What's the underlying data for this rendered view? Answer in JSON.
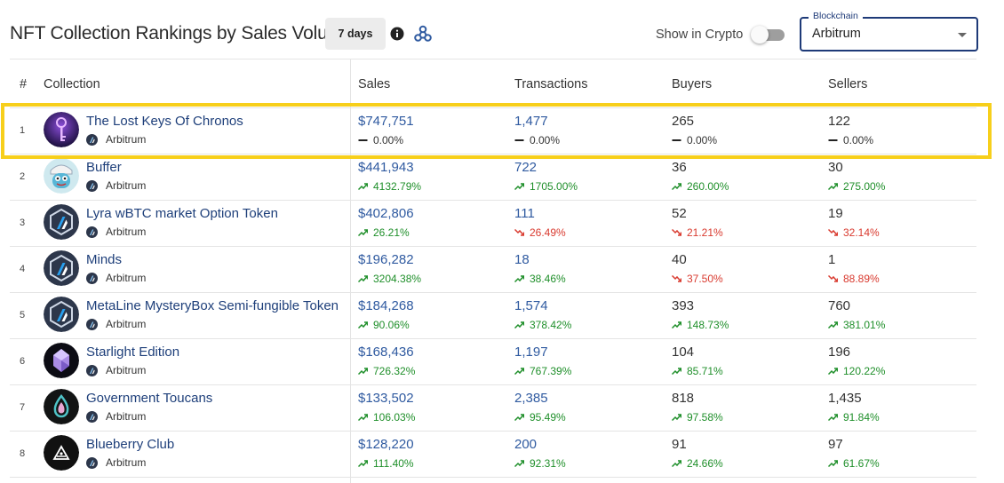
{
  "header": {
    "title": "NFT Collection Rankings by Sales Volume",
    "period_label": "7 days",
    "show_crypto_label": "Show in Crypto",
    "show_crypto_on": false,
    "blockchain_legend": "Blockchain",
    "blockchain_value": "Arbitrum"
  },
  "colors": {
    "accent": "#1e3a78",
    "link": "#2f5aa0",
    "up": "#1f8f2a",
    "down": "#d93a2f",
    "highlight": "#f7cf1b"
  },
  "table": {
    "columns": [
      "#",
      "Collection",
      "Sales",
      "Transactions",
      "Buyers",
      "Sellers"
    ],
    "rows": [
      {
        "rank": "1",
        "name": "The Lost Keys Of Chronos",
        "chain": "Arbitrum",
        "avatar_icon": "chronos-key-avatar",
        "sales": "$747,751",
        "sales_change": "0.00%",
        "sales_trend": "flat",
        "transactions": "1,477",
        "transactions_change": "0.00%",
        "transactions_trend": "flat",
        "buyers": "265",
        "buyers_change": "0.00%",
        "buyers_trend": "flat",
        "sellers": "122",
        "sellers_change": "0.00%",
        "sellers_trend": "flat",
        "highlighted": true
      },
      {
        "rank": "2",
        "name": "Buffer",
        "chain": "Arbitrum",
        "avatar_icon": "buffer-mascot-avatar",
        "sales": "$441,943",
        "sales_change": "4132.79%",
        "sales_trend": "up",
        "transactions": "722",
        "transactions_change": "1705.00%",
        "transactions_trend": "up",
        "buyers": "36",
        "buyers_change": "260.00%",
        "buyers_trend": "up",
        "sellers": "30",
        "sellers_change": "275.00%",
        "sellers_trend": "up"
      },
      {
        "rank": "3",
        "name": "Lyra wBTC market Option Token",
        "chain": "Arbitrum",
        "avatar_icon": "arbitrum-logo-avatar",
        "sales": "$402,806",
        "sales_change": "26.21%",
        "sales_trend": "up",
        "transactions": "111",
        "transactions_change": "26.49%",
        "transactions_trend": "down",
        "buyers": "52",
        "buyers_change": "21.21%",
        "buyers_trend": "down",
        "sellers": "19",
        "sellers_change": "32.14%",
        "sellers_trend": "down"
      },
      {
        "rank": "4",
        "name": "Minds",
        "chain": "Arbitrum",
        "avatar_icon": "arbitrum-logo-avatar",
        "sales": "$196,282",
        "sales_change": "3204.38%",
        "sales_trend": "up",
        "transactions": "18",
        "transactions_change": "38.46%",
        "transactions_trend": "up",
        "buyers": "40",
        "buyers_change": "37.50%",
        "buyers_trend": "down",
        "sellers": "1",
        "sellers_change": "88.89%",
        "sellers_trend": "down"
      },
      {
        "rank": "5",
        "name": "MetaLine MysteryBox Semi-fungible Token",
        "chain": "Arbitrum",
        "avatar_icon": "arbitrum-logo-avatar",
        "sales": "$184,268",
        "sales_change": "90.06%",
        "sales_trend": "up",
        "transactions": "1,574",
        "transactions_change": "378.42%",
        "transactions_trend": "up",
        "buyers": "393",
        "buyers_change": "148.73%",
        "buyers_trend": "up",
        "sellers": "760",
        "sellers_change": "381.01%",
        "sellers_trend": "up"
      },
      {
        "rank": "6",
        "name": "Starlight Edition",
        "chain": "Arbitrum",
        "avatar_icon": "starlight-crystal-avatar",
        "sales": "$168,436",
        "sales_change": "726.32%",
        "sales_trend": "up",
        "transactions": "1,197",
        "transactions_change": "767.39%",
        "transactions_trend": "up",
        "buyers": "104",
        "buyers_change": "85.71%",
        "buyers_trend": "up",
        "sellers": "196",
        "sellers_change": "120.22%",
        "sellers_trend": "up"
      },
      {
        "rank": "7",
        "name": "Government Toucans",
        "chain": "Arbitrum",
        "avatar_icon": "toucan-drop-avatar",
        "sales": "$133,502",
        "sales_change": "106.03%",
        "sales_trend": "up",
        "transactions": "2,385",
        "transactions_change": "95.49%",
        "transactions_trend": "up",
        "buyers": "818",
        "buyers_change": "97.58%",
        "buyers_trend": "up",
        "sellers": "1,435",
        "sellers_change": "91.84%",
        "sellers_trend": "up"
      },
      {
        "rank": "8",
        "name": "Blueberry Club",
        "chain": "Arbitrum",
        "avatar_icon": "blueberry-club-avatar",
        "sales": "$128,220",
        "sales_change": "111.40%",
        "sales_trend": "up",
        "transactions": "200",
        "transactions_change": "92.31%",
        "transactions_trend": "up",
        "buyers": "91",
        "buyers_change": "24.66%",
        "buyers_trend": "up",
        "sellers": "97",
        "sellers_change": "61.67%",
        "sellers_trend": "up"
      }
    ]
  }
}
